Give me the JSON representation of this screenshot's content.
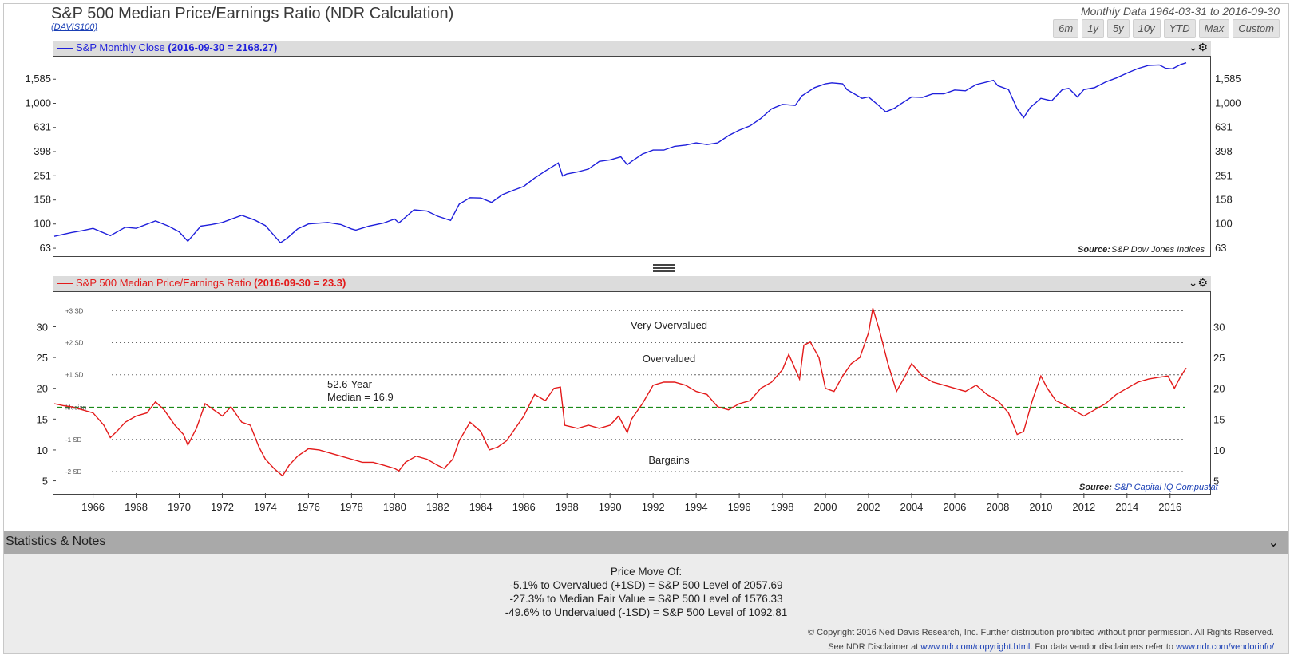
{
  "title": "S&P 500 Median Price/Earnings Ratio (NDR Calculation)",
  "subtitle": "(DAVIS100)",
  "range_text": "Monthly Data 1964-03-31 to 2016-09-30",
  "range_buttons": [
    "6m",
    "1y",
    "5y",
    "10y",
    "YTD",
    "Max",
    "Custom"
  ],
  "top_panel": {
    "legend_name": "S&P Monthly Close",
    "legend_value": "(2016-09-30 = 2168.27)",
    "source_label": "Source:",
    "source_value": "S&P Dow Jones Indices",
    "color": "#1f1fdb"
  },
  "bottom_panel": {
    "legend_name": "S&P 500 Median Price/Earnings Ratio",
    "legend_value": "(2016-09-30 = 23.3)",
    "source_label": "Source:",
    "source_value": "S&P Capital IQ Compustat",
    "color": "#e31a1a",
    "median_color": "#1a8a1a",
    "annotations": {
      "very_overvalued": "Very Overvalued",
      "overvalued": "Overvalued",
      "bargains": "Bargains",
      "median_line1": "52.6-Year",
      "median_line2": "Median = 16.9"
    }
  },
  "stats": {
    "header": "Statistics & Notes",
    "notes_title": "Price Move Of:",
    "notes": [
      "-5.1% to Overvalued (+1SD) = S&P 500 Level of 2057.69",
      "-27.3% to Median Fair Value = S&P 500 Level of 1576.33",
      "-49.6% to Undervalued (-1SD) = S&P 500 Level of 1092.81"
    ],
    "copyright": "© Copyright 2016 Ned Davis Research, Inc. Further distribution prohibited without prior permission. All Rights Reserved.",
    "disclaimer_prefix": "See NDR Disclaimer at",
    "disclaimer_link1": "www.ndr.com/copyright.html",
    "disclaimer_mid": ". For data vendor disclaimers refer to",
    "disclaimer_link2": "www.ndr.com/vendorinfo/"
  },
  "chart_data": [
    {
      "type": "line",
      "scale": "log",
      "series": [
        {
          "name": "S&P Monthly Close",
          "x": [
            1964.2,
            1965.0,
            1965.5,
            1966.0,
            1966.8,
            1967.5,
            1968.0,
            1968.9,
            1969.5,
            1970.0,
            1970.4,
            1971.0,
            1971.5,
            1972.0,
            1972.9,
            1973.5,
            1974.0,
            1974.7,
            1975.0,
            1975.5,
            1976.0,
            1976.9,
            1977.5,
            1978.0,
            1978.2,
            1978.8,
            1979.5,
            1980.0,
            1980.2,
            1980.9,
            1981.5,
            1982.0,
            1982.6,
            1983.0,
            1983.5,
            1984.0,
            1984.5,
            1985.0,
            1985.5,
            1986.0,
            1986.5,
            1987.0,
            1987.6,
            1987.8,
            1988.0,
            1988.5,
            1989.0,
            1989.5,
            1990.0,
            1990.5,
            1990.8,
            1991.0,
            1991.5,
            1992.0,
            1992.5,
            1993.0,
            1993.5,
            1994.0,
            1994.5,
            1995.0,
            1995.5,
            1996.0,
            1996.5,
            1997.0,
            1997.5,
            1998.0,
            1998.6,
            1998.9,
            1999.5,
            2000.0,
            2000.3,
            2000.8,
            2001.0,
            2001.7,
            2002.0,
            2002.5,
            2002.8,
            2003.2,
            2003.5,
            2004.0,
            2004.5,
            2005.0,
            2005.5,
            2006.0,
            2006.5,
            2007.0,
            2007.8,
            2008.0,
            2008.5,
            2008.9,
            2009.2,
            2009.5,
            2010.0,
            2010.5,
            2011.0,
            2011.3,
            2011.7,
            2012.0,
            2012.5,
            2013.0,
            2013.5,
            2014.0,
            2014.5,
            2015.0,
            2015.5,
            2015.8,
            2016.1,
            2016.5,
            2016.75
          ],
          "values": [
            79,
            85,
            88,
            92,
            80,
            94,
            92,
            106,
            96,
            86,
            72,
            96,
            99,
            103,
            118,
            108,
            97,
            70,
            76,
            91,
            100,
            103,
            99,
            91,
            89,
            96,
            102,
            110,
            102,
            131,
            128,
            116,
            107,
            146,
            165,
            164,
            151,
            175,
            190,
            205,
            240,
            275,
            320,
            250,
            260,
            270,
            285,
            330,
            340,
            360,
            310,
            330,
            380,
            410,
            410,
            440,
            450,
            470,
            455,
            470,
            540,
            600,
            650,
            750,
            900,
            980,
            960,
            1150,
            1350,
            1450,
            1480,
            1450,
            1300,
            1100,
            1130,
            950,
            850,
            910,
            990,
            1130,
            1120,
            1200,
            1200,
            1290,
            1270,
            1430,
            1550,
            1400,
            1300,
            900,
            760,
            920,
            1100,
            1050,
            1300,
            1330,
            1130,
            1300,
            1350,
            1500,
            1620,
            1780,
            1940,
            2060,
            2080,
            1950,
            1930,
            2100,
            2168.27
          ]
        }
      ],
      "y_ticks": [
        63,
        100,
        158,
        251,
        398,
        631,
        1000,
        1585
      ],
      "y_tick_labels": [
        "63",
        "100",
        "158",
        "251",
        "398",
        "631",
        "1,000",
        "1,585"
      ],
      "ylim": [
        55,
        2400
      ],
      "xlim": [
        1964.2,
        2016.75
      ]
    },
    {
      "type": "line",
      "series": [
        {
          "name": "S&P 500 Median Price/Earnings Ratio",
          "x": [
            1964.2,
            1964.6,
            1965.0,
            1965.5,
            1966.0,
            1966.5,
            1966.8,
            1967.1,
            1967.5,
            1968.0,
            1968.5,
            1968.9,
            1969.3,
            1969.8,
            1970.2,
            1970.4,
            1970.8,
            1971.2,
            1971.6,
            1972.0,
            1972.4,
            1972.9,
            1973.3,
            1973.7,
            1974.0,
            1974.4,
            1974.8,
            1975.1,
            1975.5,
            1976.0,
            1976.5,
            1977.0,
            1977.5,
            1978.0,
            1978.5,
            1979.0,
            1979.5,
            1980.0,
            1980.2,
            1980.5,
            1981.0,
            1981.5,
            1982.0,
            1982.3,
            1982.7,
            1983.0,
            1983.5,
            1984.0,
            1984.4,
            1984.8,
            1985.2,
            1985.6,
            1986.0,
            1986.5,
            1987.0,
            1987.4,
            1987.7,
            1987.9,
            1988.5,
            1989.0,
            1989.5,
            1990.0,
            1990.4,
            1990.8,
            1991.0,
            1991.5,
            1992.0,
            1992.5,
            1993.0,
            1993.5,
            1994.0,
            1994.5,
            1995.0,
            1995.5,
            1996.0,
            1996.5,
            1997.0,
            1997.5,
            1998.0,
            1998.3,
            1998.8,
            1999.0,
            1999.3,
            1999.7,
            2000.0,
            2000.4,
            2000.8,
            2001.2,
            2001.6,
            2002.0,
            2002.2,
            2002.5,
            2002.9,
            2003.3,
            2003.7,
            2004.0,
            2004.5,
            2005.0,
            2005.5,
            2006.0,
            2006.5,
            2007.0,
            2007.5,
            2008.0,
            2008.5,
            2008.9,
            2009.2,
            2009.6,
            2010.0,
            2010.3,
            2010.7,
            2011.0,
            2011.5,
            2012.0,
            2012.5,
            2013.0,
            2013.5,
            2014.0,
            2014.5,
            2015.0,
            2015.5,
            2015.9,
            2016.2,
            2016.5,
            2016.75
          ],
          "values": [
            17.5,
            17.2,
            17.0,
            16.5,
            16.0,
            14.0,
            12.0,
            13.0,
            14.5,
            15.5,
            16.0,
            17.8,
            16.5,
            14.0,
            12.5,
            10.8,
            13.5,
            17.5,
            16.5,
            15.5,
            17.0,
            14.5,
            14.0,
            10.5,
            8.5,
            7.0,
            5.8,
            7.5,
            9.0,
            10.2,
            10.0,
            9.5,
            9.0,
            8.5,
            8.0,
            8.0,
            7.5,
            7.0,
            6.6,
            8.0,
            9.0,
            8.5,
            7.5,
            7.0,
            8.5,
            11.5,
            14.5,
            13.0,
            10.0,
            10.5,
            11.5,
            13.5,
            15.5,
            19.0,
            18.0,
            20.0,
            20.2,
            14.0,
            13.5,
            14.0,
            13.5,
            14.0,
            15.5,
            12.8,
            15.0,
            17.5,
            20.5,
            21.0,
            21.0,
            20.5,
            19.5,
            19.0,
            17.0,
            16.5,
            17.5,
            18.0,
            20.0,
            21.0,
            23.0,
            25.5,
            21.5,
            27.0,
            27.5,
            25.0,
            20.0,
            19.5,
            22.0,
            24.0,
            25.0,
            29.0,
            33.0,
            29.5,
            24.0,
            19.5,
            22.0,
            24.0,
            22.0,
            21.0,
            20.5,
            20.0,
            19.5,
            20.5,
            19.0,
            18.0,
            16.0,
            12.5,
            13.0,
            18.0,
            22.0,
            20.0,
            18.0,
            17.5,
            16.5,
            15.5,
            16.5,
            17.5,
            19.0,
            20.0,
            21.0,
            21.5,
            21.8,
            22.0,
            20.0,
            22.0,
            23.3
          ]
        }
      ],
      "median": 16.9,
      "sd_lines": {
        "+3 SD": 32.6,
        "+2 SD": 27.4,
        "+1 SD": 22.2,
        "Median": 16.9,
        "-1 SD": 11.7,
        "-2 SD": 6.5
      },
      "y_ticks": [
        5,
        10,
        15,
        20,
        25,
        30
      ],
      "ylim": [
        3.0,
        35.5
      ],
      "x_ticks": [
        1966,
        1968,
        1970,
        1972,
        1974,
        1976,
        1978,
        1980,
        1982,
        1984,
        1986,
        1988,
        1990,
        1992,
        1994,
        1996,
        1998,
        2000,
        2002,
        2004,
        2006,
        2008,
        2010,
        2012,
        2014,
        2016
      ],
      "xlim": [
        1964.2,
        2016.75
      ]
    }
  ]
}
